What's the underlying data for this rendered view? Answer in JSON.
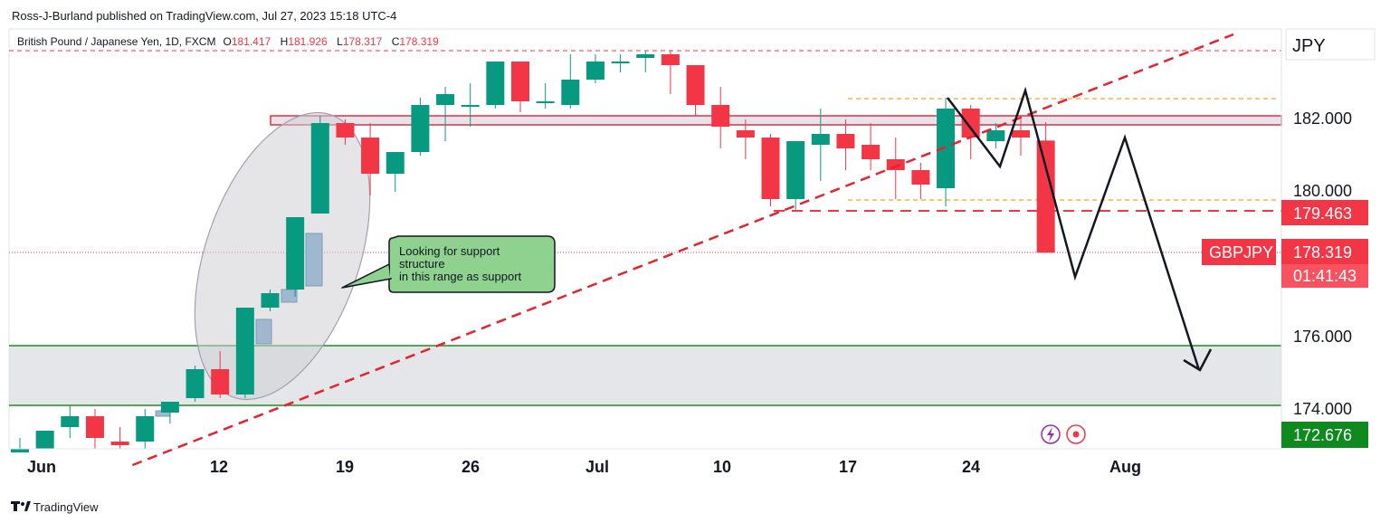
{
  "header": {
    "publisher": "Ross-J-Burland published on TradingView.com, Jul 27, 2023 15:18 UTC-4",
    "symbol": "British Pound / Japanese Yen, 1D, FXCM",
    "ohlc": [
      {
        "label": "O",
        "value": "181.417"
      },
      {
        "label": "H",
        "value": "181.926"
      },
      {
        "label": "L",
        "value": "178.317"
      },
      {
        "label": "C",
        "value": "178.319"
      }
    ]
  },
  "axis": {
    "currency": "JPY",
    "y_ticks": [
      "182.000",
      "180.000",
      "176.000",
      "174.000"
    ],
    "x_ticks": [
      "Jun",
      "12",
      "19",
      "26",
      "Jul",
      "10",
      "17",
      "24",
      "Aug"
    ]
  },
  "price_tags": {
    "level": "179.463",
    "symbol": "GBPJPY",
    "last": "178.319",
    "countdown": "01:41:43",
    "bottom": "172.676"
  },
  "callout": {
    "lines": [
      "Looking for support",
      " structure",
      "in this range as support"
    ]
  },
  "footer": {
    "logo": "TradingView"
  },
  "colors": {
    "up": "#089981",
    "down": "#f23645",
    "support_line": "#1e8e1e",
    "callout_bg": "#8fd18f",
    "tag_green": "#0f8a1e"
  },
  "chart_data": {
    "type": "candlestick",
    "symbol": "GBPJPY",
    "interval": "1D",
    "ylim": [
      172.7,
      183.6
    ],
    "candles": [
      {
        "i": 0,
        "o": 172.8,
        "h": 173.2,
        "l": 172.7,
        "c": 172.9
      },
      {
        "i": 1,
        "o": 172.9,
        "h": 173.4,
        "l": 172.7,
        "c": 173.4
      },
      {
        "i": 2,
        "o": 173.5,
        "h": 174.1,
        "l": 173.2,
        "c": 173.8
      },
      {
        "i": 3,
        "o": 173.8,
        "h": 174.0,
        "l": 172.7,
        "c": 173.2
      },
      {
        "i": 4,
        "o": 173.1,
        "h": 173.5,
        "l": 172.7,
        "c": 173.0
      },
      {
        "i": 5,
        "o": 173.1,
        "h": 174.0,
        "l": 172.7,
        "c": 173.8
      },
      {
        "i": 6,
        "o": 173.9,
        "h": 174.2,
        "l": 173.6,
        "c": 174.2
      },
      {
        "i": 7,
        "o": 174.3,
        "h": 175.2,
        "l": 174.2,
        "c": 175.1
      },
      {
        "i": 8,
        "o": 175.1,
        "h": 175.6,
        "l": 174.3,
        "c": 174.4
      },
      {
        "i": 9,
        "o": 174.4,
        "h": 176.8,
        "l": 174.3,
        "c": 176.8
      },
      {
        "i": 10,
        "o": 176.8,
        "h": 177.3,
        "l": 176.7,
        "c": 177.2
      },
      {
        "i": 11,
        "o": 177.3,
        "h": 179.3,
        "l": 177.1,
        "c": 179.3
      },
      {
        "i": 12,
        "o": 179.4,
        "h": 182.1,
        "l": 179.4,
        "c": 181.9
      },
      {
        "i": 13,
        "o": 181.9,
        "h": 182.0,
        "l": 181.3,
        "c": 181.5
      },
      {
        "i": 14,
        "o": 181.5,
        "h": 181.9,
        "l": 179.9,
        "c": 180.5
      },
      {
        "i": 15,
        "o": 180.5,
        "h": 181.1,
        "l": 180.0,
        "c": 181.1
      },
      {
        "i": 16,
        "o": 181.1,
        "h": 182.6,
        "l": 181.0,
        "c": 182.4
      },
      {
        "i": 17,
        "o": 182.4,
        "h": 182.9,
        "l": 181.4,
        "c": 182.7
      },
      {
        "i": 18,
        "o": 182.4,
        "h": 183.0,
        "l": 181.8,
        "c": 182.4
      },
      {
        "i": 19,
        "o": 182.4,
        "h": 183.6,
        "l": 182.3,
        "c": 183.6
      },
      {
        "i": 20,
        "o": 183.6,
        "h": 183.6,
        "l": 182.2,
        "c": 182.5
      },
      {
        "i": 21,
        "o": 182.5,
        "h": 183.0,
        "l": 182.3,
        "c": 182.5
      },
      {
        "i": 22,
        "o": 182.4,
        "h": 183.8,
        "l": 182.3,
        "c": 183.1
      },
      {
        "i": 23,
        "o": 183.1,
        "h": 183.8,
        "l": 183.0,
        "c": 183.6
      },
      {
        "i": 24,
        "o": 183.55,
        "h": 183.8,
        "l": 183.3,
        "c": 183.6
      },
      {
        "i": 25,
        "o": 183.7,
        "h": 183.9,
        "l": 183.3,
        "c": 183.8
      },
      {
        "i": 26,
        "o": 183.8,
        "h": 183.9,
        "l": 182.7,
        "c": 183.5
      },
      {
        "i": 27,
        "o": 183.5,
        "h": 183.5,
        "l": 182.1,
        "c": 182.4
      },
      {
        "i": 28,
        "o": 182.4,
        "h": 182.9,
        "l": 181.2,
        "c": 181.8
      },
      {
        "i": 29,
        "o": 181.7,
        "h": 182.0,
        "l": 180.9,
        "c": 181.5
      },
      {
        "i": 30,
        "o": 181.5,
        "h": 181.6,
        "l": 179.6,
        "c": 179.8
      },
      {
        "i": 31,
        "o": 179.8,
        "h": 181.4,
        "l": 179.5,
        "c": 181.4
      },
      {
        "i": 32,
        "o": 181.3,
        "h": 182.3,
        "l": 180.3,
        "c": 181.6
      },
      {
        "i": 33,
        "o": 181.6,
        "h": 182.0,
        "l": 180.6,
        "c": 181.2
      },
      {
        "i": 34,
        "o": 181.3,
        "h": 181.9,
        "l": 180.6,
        "c": 180.9
      },
      {
        "i": 35,
        "o": 180.9,
        "h": 181.5,
        "l": 179.8,
        "c": 180.6
      },
      {
        "i": 36,
        "o": 180.6,
        "h": 180.8,
        "l": 179.8,
        "c": 180.2
      },
      {
        "i": 37,
        "o": 180.1,
        "h": 182.6,
        "l": 179.6,
        "c": 182.3
      },
      {
        "i": 38,
        "o": 182.3,
        "h": 182.4,
        "l": 180.9,
        "c": 181.5
      },
      {
        "i": 39,
        "o": 181.4,
        "h": 181.9,
        "l": 181.2,
        "c": 181.7
      },
      {
        "i": 40,
        "o": 181.7,
        "h": 182.0,
        "l": 181.0,
        "c": 181.5
      },
      {
        "i": 41,
        "o": 181.417,
        "h": 181.926,
        "l": 178.317,
        "c": 178.319
      }
    ],
    "horizontal_lines": {
      "top_dashed": 183.6,
      "resistance_zone": [
        182.0,
        181.9
      ],
      "orange_upper": 182.6,
      "orange_lower": 179.8,
      "red_dashed": 179.463,
      "support_zone": [
        176.0,
        174.3
      ],
      "last_price": 178.319
    },
    "trendline": [
      {
        "i": 4.5,
        "p": 172.7
      },
      {
        "i": 48.5,
        "p": 184.4
      }
    ],
    "projection": [
      {
        "i": 37.0,
        "p": 182.6
      },
      {
        "i": 38.9,
        "p": 180.8
      },
      {
        "i": 39.9,
        "p": 182.8
      },
      {
        "i": 42.0,
        "p": 177.5
      },
      {
        "i": 44.0,
        "p": 181.5
      },
      {
        "i": 46.3,
        "p": 175.2
      }
    ]
  }
}
